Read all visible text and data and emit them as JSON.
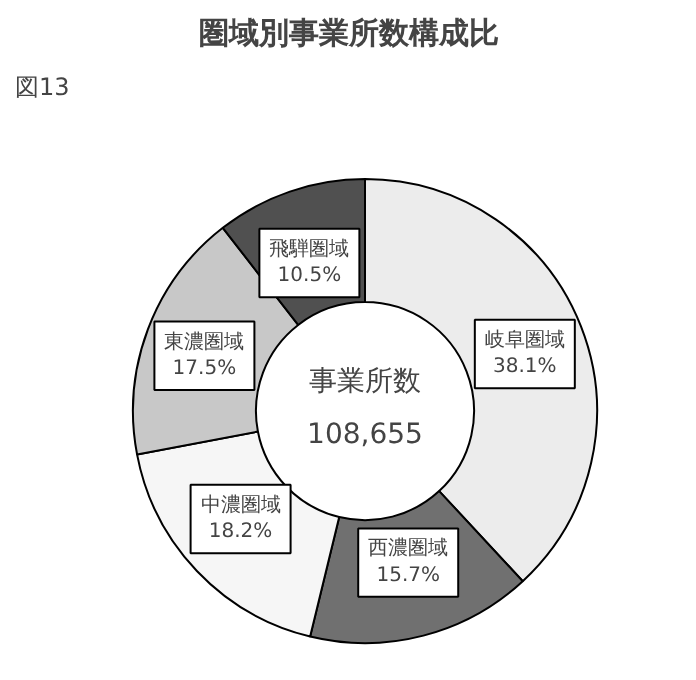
{
  "chart_data": {
    "type": "donut",
    "title": "圏域別事業所数構成比",
    "categories": [
      "岐阜圏域",
      "西濃圏域",
      "中濃圏域",
      "東濃圏域",
      "飛騨圏域"
    ],
    "values": [
      38.1,
      15.7,
      18.2,
      17.5,
      10.5
    ],
    "value_labels": [
      "38.1%",
      "15.7%",
      "18.2%",
      "17.5%",
      "10.5%"
    ],
    "colors": [
      "#ececec",
      "#707070",
      "#f6f6f6",
      "#c8c8c8",
      "#505050"
    ],
    "annotations": [
      "図13",
      "事業所数",
      "108,655"
    ]
  }
}
